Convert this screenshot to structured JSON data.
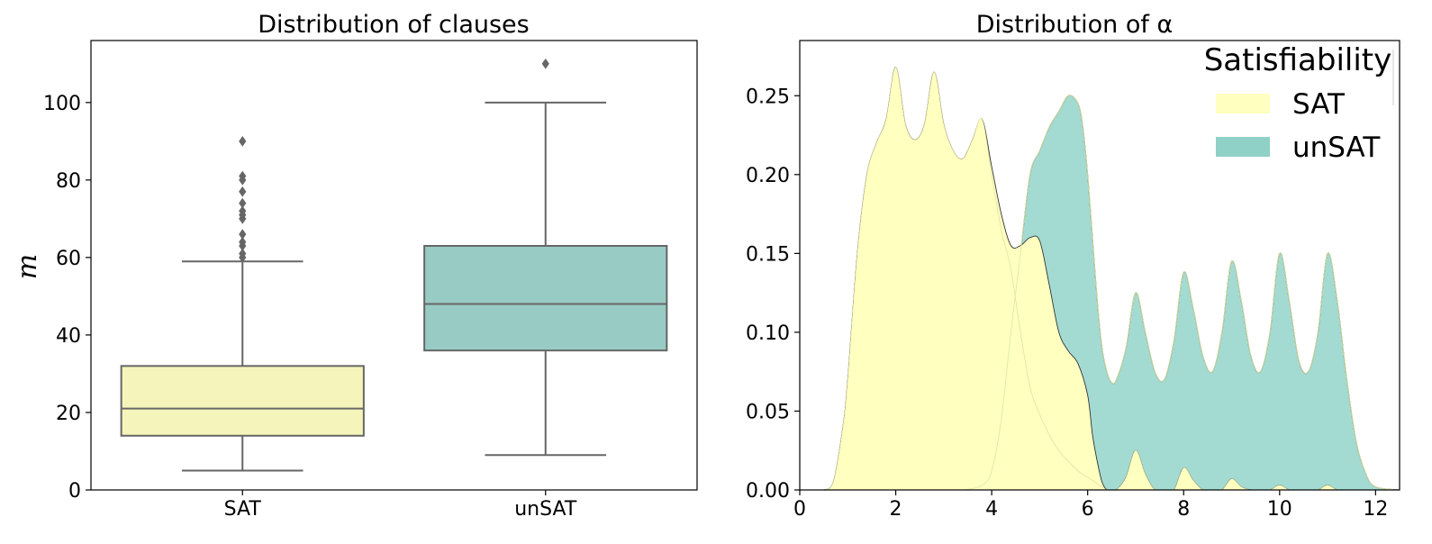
{
  "chart_data": [
    {
      "type": "box",
      "title": "Distribution of clauses",
      "xlabel": "",
      "ylabel": "m",
      "ylim": [
        0,
        116
      ],
      "yticks": [
        0,
        20,
        40,
        60,
        80,
        100
      ],
      "categories": [
        "SAT",
        "unSAT"
      ],
      "colors": [
        "#f5f5bb",
        "#98cbc4"
      ],
      "boxes": [
        {
          "category": "SAT",
          "whisker_low": 5,
          "q1": 14,
          "median": 21,
          "q3": 32,
          "whisker_high": 59,
          "outliers": [
            60,
            61,
            63,
            64,
            66,
            70,
            71,
            72,
            74,
            77,
            80,
            81,
            90
          ]
        },
        {
          "category": "unSAT",
          "whisker_low": 9,
          "q1": 36,
          "median": 48,
          "q3": 63,
          "whisker_high": 100,
          "outliers": [
            110
          ]
        }
      ]
    },
    {
      "type": "area",
      "title": "Distribution of α",
      "xlabel": "",
      "ylabel": "",
      "xlim": [
        0,
        12.5
      ],
      "ylim": [
        0,
        0.285
      ],
      "xticks": [
        0,
        2,
        4,
        6,
        8,
        10,
        12
      ],
      "yticks": [
        "0.00",
        "0.05",
        "0.10",
        "0.15",
        "0.20",
        "0.25"
      ],
      "legend": {
        "title": "Satisfiability",
        "position": "top-right"
      },
      "series": [
        {
          "name": "SAT",
          "color": "#ffffc0",
          "stacked": "top",
          "x": [
            0,
            0.5,
            0.7,
            0.9,
            1.0,
            1.2,
            1.4,
            1.6,
            1.8,
            2.0,
            2.2,
            2.4,
            2.6,
            2.8,
            3.0,
            3.2,
            3.4,
            3.6,
            3.8,
            4.0,
            4.2,
            4.4,
            4.6,
            4.8,
            5.0,
            5.2,
            5.4,
            5.6,
            5.8,
            6.0,
            6.1,
            6.2,
            6.3,
            6.4,
            6.5,
            6.6,
            6.8,
            7.0,
            7.2,
            7.4,
            7.6,
            7.8,
            8.0,
            8.2,
            8.4,
            8.6,
            8.8,
            9.0,
            9.2,
            9.4,
            9.6,
            9.8,
            10.0,
            10.2,
            10.4,
            10.6,
            10.8,
            11.0,
            11.2,
            11.4,
            11.6,
            11.8,
            12.0,
            12.5
          ],
          "total": [
            0,
            0,
            0.005,
            0.04,
            0.07,
            0.15,
            0.2,
            0.22,
            0.235,
            0.268,
            0.232,
            0.222,
            0.232,
            0.265,
            0.232,
            0.215,
            0.21,
            0.222,
            0.235,
            0.205,
            0.175,
            0.155,
            0.155,
            0.16,
            0.158,
            0.13,
            0.1,
            0.088,
            0.08,
            0.06,
            0.035,
            0.018,
            0.005,
            0,
            0,
            0,
            0.008,
            0.025,
            0.01,
            0,
            0,
            0,
            0.014,
            0.006,
            0,
            0,
            0,
            0.007,
            0.002,
            0,
            0,
            0,
            0.003,
            0,
            0,
            0,
            0,
            0.003,
            0,
            0,
            0,
            0,
            0,
            0
          ],
          "values": [
            0,
            0,
            0.005,
            0.04,
            0.07,
            0.15,
            0.2,
            0.22,
            0.235,
            0.268,
            0.232,
            0.222,
            0.232,
            0.265,
            0.232,
            0.215,
            0.21,
            0.222,
            0.235,
            0.2,
            0.165,
            0.14,
            0.1,
            0.065,
            0.048,
            0.035,
            0.025,
            0.018,
            0.012,
            0.008,
            0.006,
            0.004,
            0.002,
            0,
            0,
            0,
            0.008,
            0.025,
            0.01,
            0,
            0,
            0,
            0.014,
            0.006,
            0,
            0,
            0,
            0.007,
            0.002,
            0,
            0,
            0,
            0.003,
            0,
            0,
            0,
            0,
            0.003,
            0,
            0,
            0,
            0,
            0,
            0
          ]
        },
        {
          "name": "unSAT",
          "color": "#a3dbd3",
          "stacked": "bottom",
          "x": [
            0,
            3.0,
            3.4,
            3.8,
            4.0,
            4.2,
            4.4,
            4.6,
            4.8,
            5.0,
            5.2,
            5.4,
            5.6,
            5.8,
            5.9,
            6.0,
            6.1,
            6.2,
            6.3,
            6.4,
            6.5,
            6.6,
            6.8,
            7.0,
            7.2,
            7.4,
            7.6,
            7.8,
            8.0,
            8.2,
            8.4,
            8.6,
            8.8,
            9.0,
            9.2,
            9.4,
            9.6,
            9.8,
            10.0,
            10.2,
            10.4,
            10.6,
            10.8,
            11.0,
            11.2,
            11.4,
            11.6,
            11.8,
            12.0,
            12.5
          ],
          "total": [
            0,
            0,
            0,
            0.003,
            0.012,
            0.045,
            0.1,
            0.15,
            0.2,
            0.215,
            0.23,
            0.24,
            0.25,
            0.245,
            0.23,
            0.2,
            0.16,
            0.12,
            0.09,
            0.075,
            0.068,
            0.07,
            0.09,
            0.125,
            0.1,
            0.075,
            0.07,
            0.095,
            0.138,
            0.115,
            0.085,
            0.075,
            0.1,
            0.145,
            0.12,
            0.085,
            0.075,
            0.1,
            0.15,
            0.12,
            0.082,
            0.075,
            0.1,
            0.15,
            0.12,
            0.07,
            0.03,
            0.01,
            0.002,
            0
          ]
        }
      ]
    }
  ]
}
